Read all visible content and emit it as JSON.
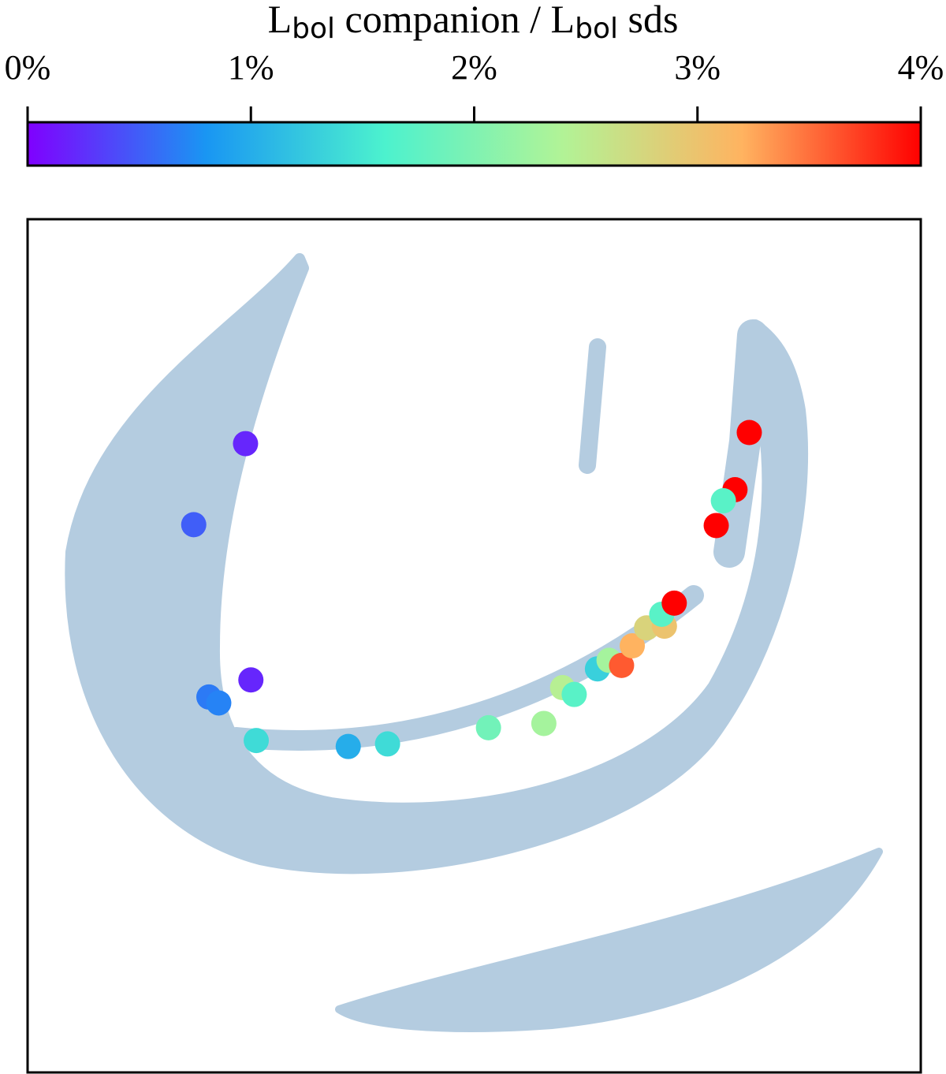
{
  "chart_data": {
    "type": "scatter",
    "title": [
      "L",
      "bol",
      " companion / L",
      "bol",
      " sds"
    ],
    "colormap": [
      "#8000ff",
      "#1996f3",
      "#4cf2ce",
      "#b2f396",
      "#ffb360",
      "#ff0000"
    ],
    "clim": [
      0,
      4
    ],
    "cticks": [
      {
        "value": 0,
        "label": "0%"
      },
      {
        "value": 1,
        "label": "1%"
      },
      {
        "value": 2,
        "label": "2%"
      },
      {
        "value": 3,
        "label": "3%"
      },
      {
        "value": 4,
        "label": "4%"
      }
    ],
    "xlim": [
      0,
      100
    ],
    "ylim": [
      0,
      100
    ],
    "x": [
      24.4,
      18.6,
      25.0,
      20.3,
      21.4,
      25.6,
      35.9,
      40.3,
      51.6,
      57.8,
      59.9,
      61.2,
      63.8,
      65.1,
      66.5,
      67.7,
      69.3,
      71.3,
      71.0,
      72.4,
      77.1,
      79.2,
      77.9,
      80.8
    ],
    "y": [
      73.7,
      64.2,
      46.0,
      44.0,
      43.3,
      38.9,
      38.2,
      38.5,
      40.4,
      40.9,
      45.1,
      44.3,
      47.3,
      48.3,
      47.7,
      50.0,
      52.1,
      52.3,
      53.7,
      55.0,
      64.1,
      68.3,
      67.0,
      75.0
    ],
    "values": [
      0.2,
      0.5,
      0.2,
      0.65,
      0.7,
      1.4,
      1.0,
      1.4,
      1.9,
      2.3,
      2.45,
      1.7,
      1.3,
      2.3,
      3.6,
      3.2,
      2.8,
      3.0,
      1.7,
      4.0,
      4.0,
      4.0,
      1.7,
      4.0
    ]
  }
}
